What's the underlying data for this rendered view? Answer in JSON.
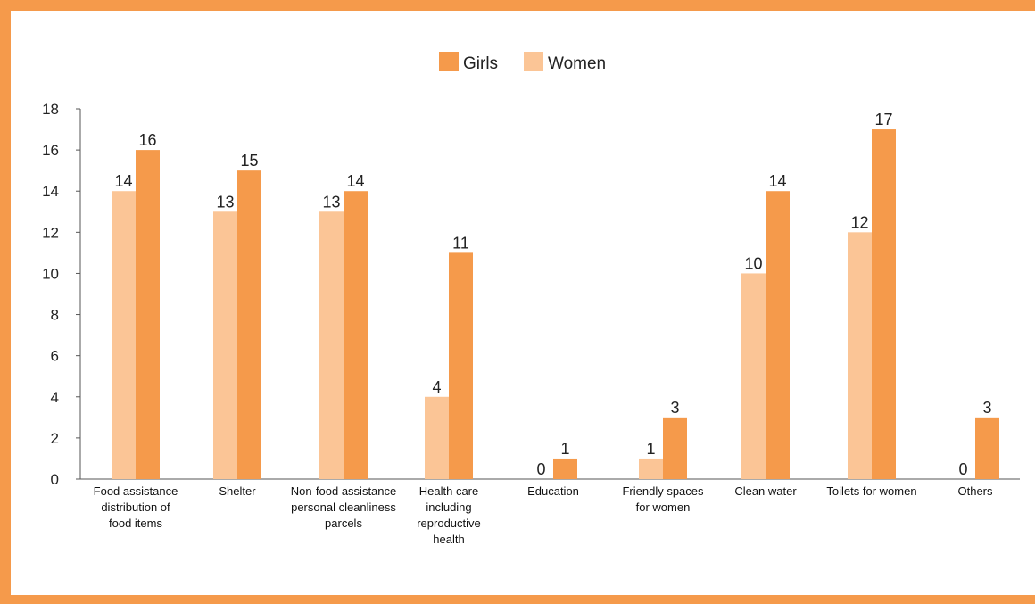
{
  "chart_data": {
    "type": "bar",
    "categories": [
      [
        "Food assistance",
        "distribution of",
        "food items"
      ],
      [
        "Shelter"
      ],
      [
        "Non-food assistance",
        "personal cleanliness",
        "parcels"
      ],
      [
        "Health care",
        "including",
        "reproductive",
        "health"
      ],
      [
        "Education"
      ],
      [
        "Friendly spaces",
        "for women"
      ],
      [
        "Clean water"
      ],
      [
        "Toilets for women"
      ],
      [
        "Others"
      ]
    ],
    "series": [
      {
        "name": "Women",
        "color": "#fbc596",
        "values": [
          14,
          13,
          13,
          4,
          0,
          1,
          10,
          12,
          0
        ]
      },
      {
        "name": "Girls",
        "color": "#f59a4b",
        "values": [
          16,
          15,
          14,
          11,
          1,
          3,
          14,
          17,
          3
        ]
      }
    ],
    "legend_order": [
      "Girls",
      "Women"
    ],
    "y_ticks": [
      0,
      2,
      4,
      6,
      8,
      10,
      12,
      14,
      16,
      18
    ],
    "ylim": [
      0,
      18
    ],
    "grid": false,
    "legend_position": "top-center",
    "data_labels": true
  }
}
